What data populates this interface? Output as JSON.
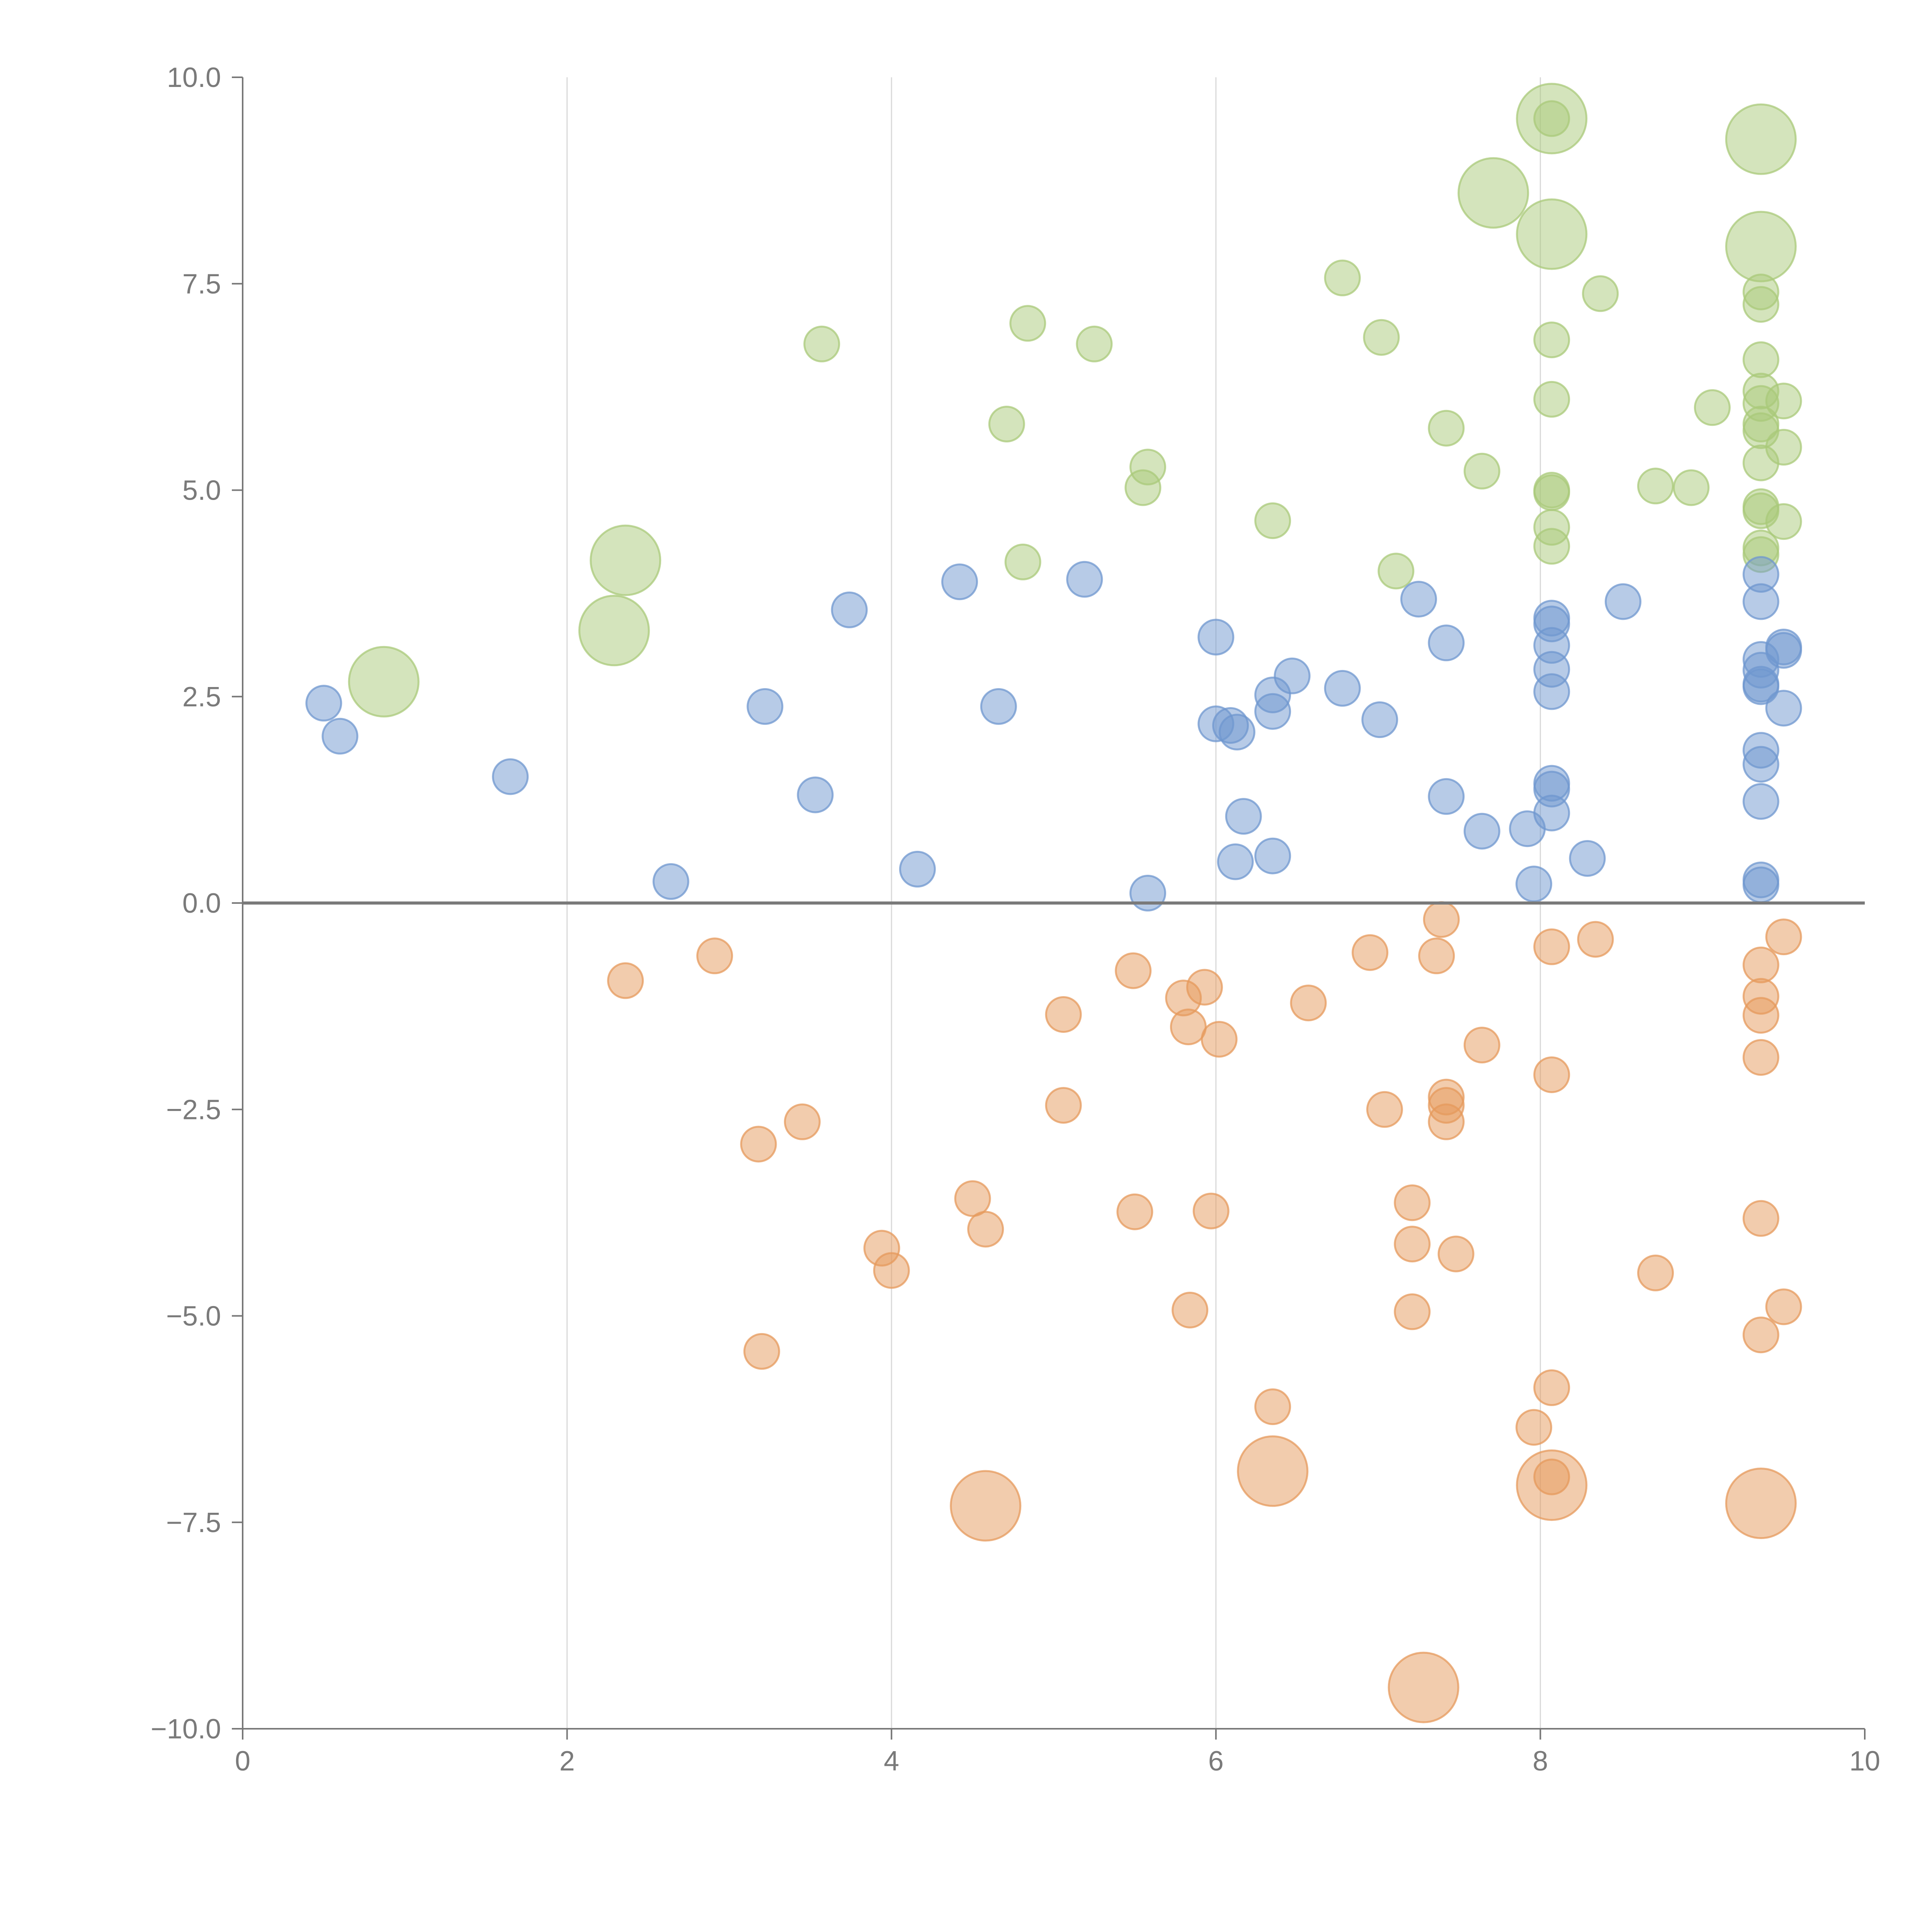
{
  "chart_data": {
    "type": "scatter",
    "title": "",
    "xlabel": "",
    "ylabel": "",
    "xlim": [
      0,
      10
    ],
    "ylim": [
      -10,
      10
    ],
    "x_ticks": [
      0,
      2,
      4,
      6,
      8,
      10
    ],
    "x_tick_labels": [
      "0",
      "2",
      "4",
      "6",
      "8",
      "10"
    ],
    "y_ticks": [
      10,
      7.5,
      5,
      2.5,
      0,
      -2.5,
      -5,
      -7.5,
      -10
    ],
    "y_tick_labels": [
      "10.0",
      "7.5",
      "5.0",
      "2.5",
      "0.0",
      "−2.5",
      "−5.0",
      "−7.5",
      "−10.0"
    ],
    "x_gridlines": [
      2,
      4,
      6,
      8
    ],
    "zero_line": 0,
    "colors": {
      "green": "#a9c97a",
      "blue": "#6f97cf",
      "orange": "#e69a5c",
      "axis": "#777777",
      "grid": "#d9d9d9"
    },
    "series": [
      {
        "name": "green",
        "color": "#a9c97a",
        "points": [
          [
            0.87,
            2.68,
            1.0
          ],
          [
            2.29,
            3.3,
            1.0
          ],
          [
            2.36,
            4.15,
            1.0
          ],
          [
            3.57,
            6.77,
            0.5
          ],
          [
            4.71,
            5.8,
            0.5
          ],
          [
            4.81,
            4.13,
            0.5
          ],
          [
            4.84,
            7.02,
            0.5
          ],
          [
            5.25,
            6.77,
            0.5
          ],
          [
            5.55,
            5.03,
            0.5
          ],
          [
            5.58,
            5.28,
            0.5
          ],
          [
            6.35,
            4.63,
            0.5
          ],
          [
            6.78,
            7.57,
            0.5
          ],
          [
            7.02,
            6.85,
            0.5
          ],
          [
            7.11,
            4.02,
            0.5
          ],
          [
            7.42,
            5.75,
            0.5
          ],
          [
            7.64,
            5.23,
            0.5
          ],
          [
            7.71,
            8.6,
            1.0
          ],
          [
            8.07,
            9.5,
            1.0
          ],
          [
            8.07,
            8.1,
            1.0
          ],
          [
            8.07,
            9.5,
            0.5
          ],
          [
            8.07,
            6.82,
            0.5
          ],
          [
            8.07,
            6.1,
            0.5
          ],
          [
            8.07,
            5.0,
            0.5
          ],
          [
            8.07,
            4.97,
            0.5
          ],
          [
            8.07,
            4.55,
            0.5
          ],
          [
            8.07,
            4.32,
            0.5
          ],
          [
            8.37,
            7.38,
            0.5
          ],
          [
            8.71,
            5.05,
            0.5
          ],
          [
            8.93,
            5.03,
            0.5
          ],
          [
            9.06,
            6.0,
            0.5
          ],
          [
            9.36,
            9.25,
            1.0
          ],
          [
            9.36,
            7.95,
            1.0
          ],
          [
            9.36,
            7.4,
            0.5
          ],
          [
            9.36,
            7.25,
            0.5
          ],
          [
            9.36,
            6.58,
            0.5
          ],
          [
            9.36,
            6.2,
            0.5
          ],
          [
            9.36,
            6.05,
            0.5
          ],
          [
            9.36,
            5.8,
            0.5
          ],
          [
            9.36,
            5.72,
            0.5
          ],
          [
            9.36,
            5.33,
            0.5
          ],
          [
            9.36,
            4.8,
            0.5
          ],
          [
            9.36,
            4.75,
            0.5
          ],
          [
            9.36,
            4.3,
            0.5
          ],
          [
            9.36,
            4.22,
            0.5
          ],
          [
            9.5,
            6.08,
            0.5
          ],
          [
            9.5,
            5.52,
            0.5
          ],
          [
            9.5,
            4.62,
            0.5
          ]
        ]
      },
      {
        "name": "blue",
        "color": "#6f97cf",
        "points": [
          [
            0.5,
            2.42,
            0.5
          ],
          [
            0.6,
            2.02,
            0.5
          ],
          [
            1.65,
            1.53,
            0.5
          ],
          [
            2.64,
            0.26,
            0.5
          ],
          [
            3.22,
            2.38,
            0.5
          ],
          [
            3.53,
            1.31,
            0.5
          ],
          [
            3.74,
            3.55,
            0.5
          ],
          [
            4.16,
            0.41,
            0.5
          ],
          [
            4.42,
            3.89,
            0.5
          ],
          [
            4.66,
            2.38,
            0.5
          ],
          [
            5.19,
            3.92,
            0.5
          ],
          [
            5.58,
            0.12,
            0.5
          ],
          [
            6.0,
            3.22,
            0.5
          ],
          [
            6.0,
            2.17,
            0.5
          ],
          [
            6.09,
            2.15,
            0.5
          ],
          [
            6.13,
            2.07,
            0.5
          ],
          [
            6.12,
            0.5,
            0.5
          ],
          [
            6.17,
            1.05,
            0.5
          ],
          [
            6.35,
            2.52,
            0.5
          ],
          [
            6.35,
            2.32,
            0.5
          ],
          [
            6.35,
            0.57,
            0.5
          ],
          [
            6.47,
            2.75,
            0.5
          ],
          [
            6.78,
            2.6,
            0.5
          ],
          [
            7.01,
            2.22,
            0.5
          ],
          [
            7.25,
            3.68,
            0.5
          ],
          [
            7.42,
            3.15,
            0.5
          ],
          [
            7.42,
            1.29,
            0.5
          ],
          [
            7.64,
            0.87,
            0.5
          ],
          [
            7.92,
            0.9,
            0.5
          ],
          [
            7.96,
            0.23,
            0.5
          ],
          [
            8.07,
            3.45,
            0.5
          ],
          [
            8.07,
            3.38,
            0.5
          ],
          [
            8.07,
            3.12,
            0.5
          ],
          [
            8.07,
            2.83,
            0.5
          ],
          [
            8.07,
            2.56,
            0.5
          ],
          [
            8.07,
            1.45,
            0.5
          ],
          [
            8.07,
            1.38,
            0.5
          ],
          [
            8.07,
            1.09,
            0.5
          ],
          [
            8.29,
            0.54,
            0.5
          ],
          [
            8.51,
            3.65,
            0.5
          ],
          [
            9.36,
            3.98,
            0.5
          ],
          [
            9.36,
            3.65,
            0.5
          ],
          [
            9.36,
            2.95,
            0.5
          ],
          [
            9.36,
            2.82,
            0.5
          ],
          [
            9.36,
            2.65,
            0.5
          ],
          [
            9.36,
            2.62,
            0.5
          ],
          [
            9.36,
            1.85,
            0.5
          ],
          [
            9.36,
            1.68,
            0.5
          ],
          [
            9.36,
            1.23,
            0.5
          ],
          [
            9.36,
            0.28,
            0.5
          ],
          [
            9.36,
            0.22,
            0.5
          ],
          [
            9.5,
            3.1,
            0.5
          ],
          [
            9.5,
            3.06,
            0.5
          ],
          [
            9.5,
            2.36,
            0.5
          ]
        ]
      },
      {
        "name": "orange",
        "color": "#e69a5c",
        "points": [
          [
            2.36,
            -0.94,
            0.5
          ],
          [
            2.91,
            -0.64,
            0.5
          ],
          [
            3.18,
            -2.92,
            0.5
          ],
          [
            3.2,
            -5.43,
            0.5
          ],
          [
            3.45,
            -2.65,
            0.5
          ],
          [
            3.94,
            -4.18,
            0.5
          ],
          [
            4.0,
            -4.45,
            0.5
          ],
          [
            4.5,
            -3.58,
            0.5
          ],
          [
            4.58,
            -3.95,
            0.5
          ],
          [
            4.58,
            -7.3,
            1.0
          ],
          [
            5.06,
            -1.35,
            0.5
          ],
          [
            5.06,
            -2.45,
            0.5
          ],
          [
            5.49,
            -0.82,
            0.5
          ],
          [
            5.5,
            -3.74,
            0.5
          ],
          [
            5.8,
            -1.15,
            0.5
          ],
          [
            5.83,
            -1.5,
            0.5
          ],
          [
            5.84,
            -4.93,
            0.5
          ],
          [
            5.93,
            -1.02,
            0.5
          ],
          [
            5.97,
            -3.73,
            0.5
          ],
          [
            6.02,
            -1.65,
            0.5
          ],
          [
            6.35,
            -6.1,
            0.5
          ],
          [
            6.35,
            -6.88,
            1.0
          ],
          [
            6.57,
            -1.21,
            0.5
          ],
          [
            6.95,
            -0.6,
            0.5
          ],
          [
            7.04,
            -2.5,
            0.5
          ],
          [
            7.21,
            -3.63,
            0.5
          ],
          [
            7.21,
            -4.13,
            0.5
          ],
          [
            7.21,
            -4.95,
            0.5
          ],
          [
            7.28,
            -9.5,
            1.0
          ],
          [
            7.36,
            -0.64,
            0.5
          ],
          [
            7.39,
            -0.2,
            0.5
          ],
          [
            7.42,
            -2.35,
            0.5
          ],
          [
            7.42,
            -2.45,
            0.5
          ],
          [
            7.42,
            -2.65,
            0.5
          ],
          [
            7.48,
            -4.25,
            0.5
          ],
          [
            7.64,
            -1.72,
            0.5
          ],
          [
            7.96,
            -6.35,
            0.5
          ],
          [
            8.07,
            -0.53,
            0.5
          ],
          [
            8.07,
            -2.08,
            0.5
          ],
          [
            8.07,
            -5.87,
            0.5
          ],
          [
            8.07,
            -6.95,
            0.5
          ],
          [
            8.07,
            -7.05,
            1.0
          ],
          [
            8.34,
            -0.44,
            0.5
          ],
          [
            8.71,
            -4.48,
            0.5
          ],
          [
            9.36,
            -0.75,
            0.5
          ],
          [
            9.36,
            -1.13,
            0.5
          ],
          [
            9.36,
            -1.36,
            0.5
          ],
          [
            9.36,
            -1.87,
            0.5
          ],
          [
            9.36,
            -3.82,
            0.5
          ],
          [
            9.36,
            -5.23,
            0.5
          ],
          [
            9.36,
            -7.27,
            1.0
          ],
          [
            9.5,
            -0.41,
            0.5
          ],
          [
            9.5,
            -4.89,
            0.5
          ]
        ]
      }
    ]
  }
}
